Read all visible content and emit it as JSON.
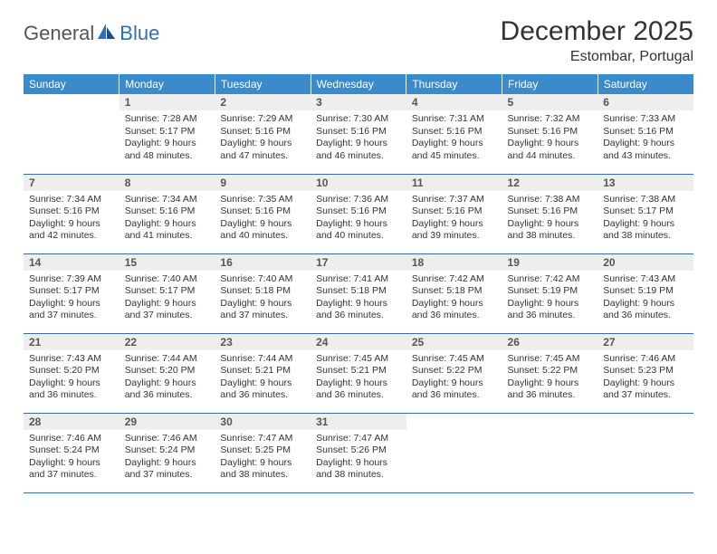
{
  "brand": {
    "part1": "General",
    "part2": "Blue"
  },
  "header": {
    "month": "December 2025",
    "location": "Estombar, Portugal"
  },
  "colors": {
    "header_bg": "#3b8bca",
    "header_text": "#ffffff",
    "rule": "#2f6fb2",
    "daynum_bg": "#eeeeee",
    "text": "#333333"
  },
  "weekdays": [
    "Sunday",
    "Monday",
    "Tuesday",
    "Wednesday",
    "Thursday",
    "Friday",
    "Saturday"
  ],
  "weeks": [
    [
      {
        "n": "",
        "sunrise": "",
        "sunset": "",
        "daylight": ""
      },
      {
        "n": "1",
        "sunrise": "Sunrise: 7:28 AM",
        "sunset": "Sunset: 5:17 PM",
        "daylight": "Daylight: 9 hours and 48 minutes."
      },
      {
        "n": "2",
        "sunrise": "Sunrise: 7:29 AM",
        "sunset": "Sunset: 5:16 PM",
        "daylight": "Daylight: 9 hours and 47 minutes."
      },
      {
        "n": "3",
        "sunrise": "Sunrise: 7:30 AM",
        "sunset": "Sunset: 5:16 PM",
        "daylight": "Daylight: 9 hours and 46 minutes."
      },
      {
        "n": "4",
        "sunrise": "Sunrise: 7:31 AM",
        "sunset": "Sunset: 5:16 PM",
        "daylight": "Daylight: 9 hours and 45 minutes."
      },
      {
        "n": "5",
        "sunrise": "Sunrise: 7:32 AM",
        "sunset": "Sunset: 5:16 PM",
        "daylight": "Daylight: 9 hours and 44 minutes."
      },
      {
        "n": "6",
        "sunrise": "Sunrise: 7:33 AM",
        "sunset": "Sunset: 5:16 PM",
        "daylight": "Daylight: 9 hours and 43 minutes."
      }
    ],
    [
      {
        "n": "7",
        "sunrise": "Sunrise: 7:34 AM",
        "sunset": "Sunset: 5:16 PM",
        "daylight": "Daylight: 9 hours and 42 minutes."
      },
      {
        "n": "8",
        "sunrise": "Sunrise: 7:34 AM",
        "sunset": "Sunset: 5:16 PM",
        "daylight": "Daylight: 9 hours and 41 minutes."
      },
      {
        "n": "9",
        "sunrise": "Sunrise: 7:35 AM",
        "sunset": "Sunset: 5:16 PM",
        "daylight": "Daylight: 9 hours and 40 minutes."
      },
      {
        "n": "10",
        "sunrise": "Sunrise: 7:36 AM",
        "sunset": "Sunset: 5:16 PM",
        "daylight": "Daylight: 9 hours and 40 minutes."
      },
      {
        "n": "11",
        "sunrise": "Sunrise: 7:37 AM",
        "sunset": "Sunset: 5:16 PM",
        "daylight": "Daylight: 9 hours and 39 minutes."
      },
      {
        "n": "12",
        "sunrise": "Sunrise: 7:38 AM",
        "sunset": "Sunset: 5:16 PM",
        "daylight": "Daylight: 9 hours and 38 minutes."
      },
      {
        "n": "13",
        "sunrise": "Sunrise: 7:38 AM",
        "sunset": "Sunset: 5:17 PM",
        "daylight": "Daylight: 9 hours and 38 minutes."
      }
    ],
    [
      {
        "n": "14",
        "sunrise": "Sunrise: 7:39 AM",
        "sunset": "Sunset: 5:17 PM",
        "daylight": "Daylight: 9 hours and 37 minutes."
      },
      {
        "n": "15",
        "sunrise": "Sunrise: 7:40 AM",
        "sunset": "Sunset: 5:17 PM",
        "daylight": "Daylight: 9 hours and 37 minutes."
      },
      {
        "n": "16",
        "sunrise": "Sunrise: 7:40 AM",
        "sunset": "Sunset: 5:18 PM",
        "daylight": "Daylight: 9 hours and 37 minutes."
      },
      {
        "n": "17",
        "sunrise": "Sunrise: 7:41 AM",
        "sunset": "Sunset: 5:18 PM",
        "daylight": "Daylight: 9 hours and 36 minutes."
      },
      {
        "n": "18",
        "sunrise": "Sunrise: 7:42 AM",
        "sunset": "Sunset: 5:18 PM",
        "daylight": "Daylight: 9 hours and 36 minutes."
      },
      {
        "n": "19",
        "sunrise": "Sunrise: 7:42 AM",
        "sunset": "Sunset: 5:19 PM",
        "daylight": "Daylight: 9 hours and 36 minutes."
      },
      {
        "n": "20",
        "sunrise": "Sunrise: 7:43 AM",
        "sunset": "Sunset: 5:19 PM",
        "daylight": "Daylight: 9 hours and 36 minutes."
      }
    ],
    [
      {
        "n": "21",
        "sunrise": "Sunrise: 7:43 AM",
        "sunset": "Sunset: 5:20 PM",
        "daylight": "Daylight: 9 hours and 36 minutes."
      },
      {
        "n": "22",
        "sunrise": "Sunrise: 7:44 AM",
        "sunset": "Sunset: 5:20 PM",
        "daylight": "Daylight: 9 hours and 36 minutes."
      },
      {
        "n": "23",
        "sunrise": "Sunrise: 7:44 AM",
        "sunset": "Sunset: 5:21 PM",
        "daylight": "Daylight: 9 hours and 36 minutes."
      },
      {
        "n": "24",
        "sunrise": "Sunrise: 7:45 AM",
        "sunset": "Sunset: 5:21 PM",
        "daylight": "Daylight: 9 hours and 36 minutes."
      },
      {
        "n": "25",
        "sunrise": "Sunrise: 7:45 AM",
        "sunset": "Sunset: 5:22 PM",
        "daylight": "Daylight: 9 hours and 36 minutes."
      },
      {
        "n": "26",
        "sunrise": "Sunrise: 7:45 AM",
        "sunset": "Sunset: 5:22 PM",
        "daylight": "Daylight: 9 hours and 36 minutes."
      },
      {
        "n": "27",
        "sunrise": "Sunrise: 7:46 AM",
        "sunset": "Sunset: 5:23 PM",
        "daylight": "Daylight: 9 hours and 37 minutes."
      }
    ],
    [
      {
        "n": "28",
        "sunrise": "Sunrise: 7:46 AM",
        "sunset": "Sunset: 5:24 PM",
        "daylight": "Daylight: 9 hours and 37 minutes."
      },
      {
        "n": "29",
        "sunrise": "Sunrise: 7:46 AM",
        "sunset": "Sunset: 5:24 PM",
        "daylight": "Daylight: 9 hours and 37 minutes."
      },
      {
        "n": "30",
        "sunrise": "Sunrise: 7:47 AM",
        "sunset": "Sunset: 5:25 PM",
        "daylight": "Daylight: 9 hours and 38 minutes."
      },
      {
        "n": "31",
        "sunrise": "Sunrise: 7:47 AM",
        "sunset": "Sunset: 5:26 PM",
        "daylight": "Daylight: 9 hours and 38 minutes."
      },
      {
        "n": "",
        "sunrise": "",
        "sunset": "",
        "daylight": ""
      },
      {
        "n": "",
        "sunrise": "",
        "sunset": "",
        "daylight": ""
      },
      {
        "n": "",
        "sunrise": "",
        "sunset": "",
        "daylight": ""
      }
    ]
  ]
}
